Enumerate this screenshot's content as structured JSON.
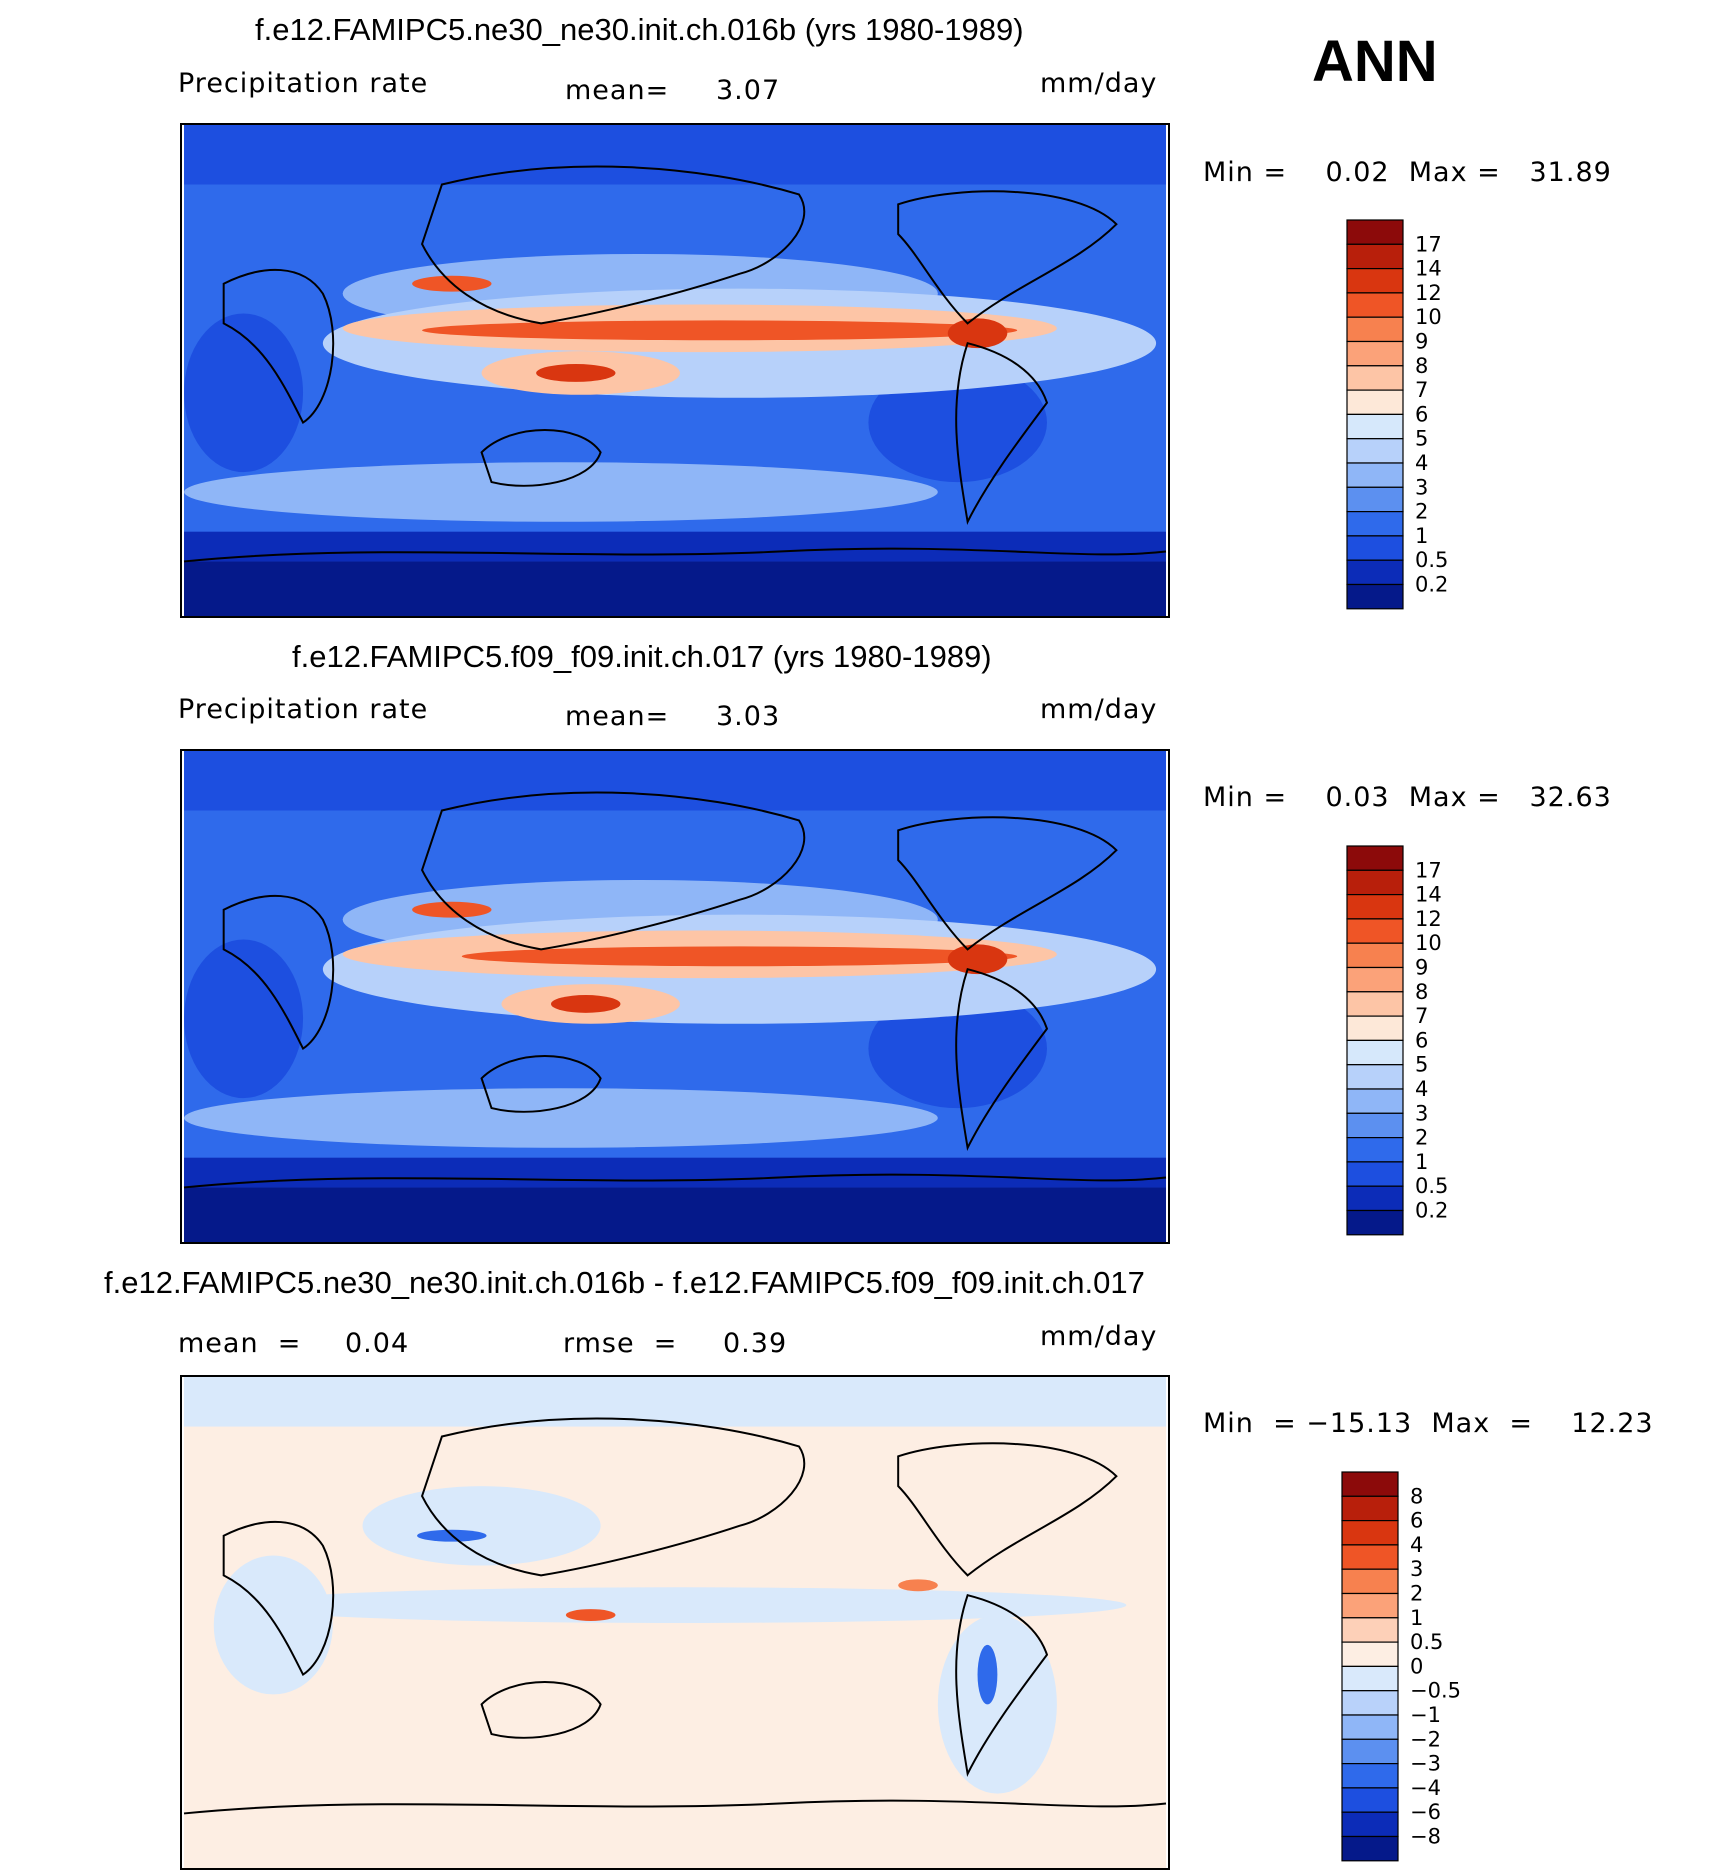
{
  "season": "ANN",
  "panels": [
    {
      "id": "top",
      "title": "f.e12.FAMIPC5.ne30_ne30.init.ch.016b (yrs 1980-1989)",
      "variable": "Precipitation rate",
      "stat1": "mean=",
      "stat1_value": "3.07",
      "units": "mm/day",
      "minmax": "Min =    0.02  Max =   31.89",
      "colorbar": {
        "levels": [
          "17",
          "14",
          "12",
          "10",
          "9",
          "8",
          "7",
          "6",
          "5",
          "4",
          "3",
          "2",
          "1",
          "0.5",
          "0.2"
        ],
        "colors": [
          "#8c0a0a",
          "#b81f0b",
          "#d93610",
          "#ef5526",
          "#f7814f",
          "#fba279",
          "#fdc5a6",
          "#fde8d8",
          "#d6e8fb",
          "#b7d1fa",
          "#8fb6f7",
          "#5c90f0",
          "#2f6aeb",
          "#1d4fe0",
          "#0c2cb8",
          "#05198a"
        ]
      }
    },
    {
      "id": "middle",
      "title": "f.e12.FAMIPC5.f09_f09.init.ch.017 (yrs 1980-1989)",
      "variable": "Precipitation rate",
      "stat1": "mean=",
      "stat1_value": "3.03",
      "units": "mm/day",
      "minmax": "Min =    0.03  Max =   32.63",
      "colorbar": {
        "levels": [
          "17",
          "14",
          "12",
          "10",
          "9",
          "8",
          "7",
          "6",
          "5",
          "4",
          "3",
          "2",
          "1",
          "0.5",
          "0.2"
        ],
        "colors": [
          "#8c0a0a",
          "#b81f0b",
          "#d93610",
          "#ef5526",
          "#f7814f",
          "#fba279",
          "#fdc5a6",
          "#fde8d8",
          "#d6e8fb",
          "#b7d1fa",
          "#8fb6f7",
          "#5c90f0",
          "#2f6aeb",
          "#1d4fe0",
          "#0c2cb8",
          "#05198a"
        ]
      }
    },
    {
      "id": "bottom",
      "title": "f.e12.FAMIPC5.ne30_ne30.init.ch.016b - f.e12.FAMIPC5.f09_f09.init.ch.017",
      "stat1": "mean  =",
      "stat1_value": "0.04",
      "stat2": "rmse  =",
      "stat2_value": "0.39",
      "units": "mm/day",
      "minmax": "Min  = −15.13  Max  =    12.23",
      "colorbar": {
        "levels": [
          "8",
          "6",
          "4",
          "3",
          "2",
          "1",
          "0.5",
          "0",
          "−0.5",
          "−1",
          "−2",
          "−3",
          "−4",
          "−6",
          "−8"
        ],
        "colors": [
          "#8c0a0a",
          "#b81f0b",
          "#d93610",
          "#ef5526",
          "#f7814f",
          "#fba279",
          "#fdd0b8",
          "#fdeee3",
          "#d9e9fb",
          "#b9d2fa",
          "#8fb6f7",
          "#5c90f0",
          "#2f6aeb",
          "#1d4fe0",
          "#0c2cb8",
          "#05198a"
        ]
      }
    }
  ]
}
